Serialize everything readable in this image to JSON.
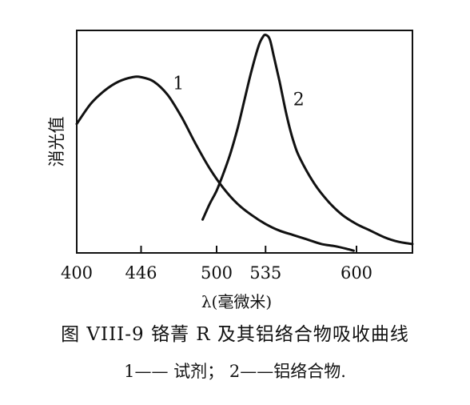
{
  "chart_data": {
    "type": "line",
    "xlabel": "λ(毫微米)",
    "ylabel": "消光值",
    "xlim": [
      400,
      640
    ],
    "ylim": [
      0,
      1.0
    ],
    "x_ticks": [
      400,
      446,
      500,
      535,
      600
    ],
    "tick_labels": [
      "400",
      "446",
      "500",
      "535",
      "600"
    ],
    "grid": false,
    "legend": "none",
    "series": [
      {
        "name": "1",
        "x": [
          400,
          410,
          420,
          430,
          440,
          446,
          455,
          465,
          475,
          485,
          495,
          505,
          515,
          525,
          535,
          545,
          555,
          565,
          575,
          585,
          595,
          598
        ],
        "y": [
          0.58,
          0.67,
          0.73,
          0.77,
          0.79,
          0.79,
          0.77,
          0.71,
          0.61,
          0.49,
          0.38,
          0.29,
          0.22,
          0.17,
          0.13,
          0.1,
          0.08,
          0.06,
          0.04,
          0.03,
          0.015,
          0.01
        ]
      },
      {
        "name": "2",
        "x": [
          490,
          495,
          500,
          505,
          510,
          515,
          520,
          525,
          530,
          533,
          535,
          538,
          541,
          545,
          550,
          555,
          560,
          570,
          580,
          590,
          600,
          610,
          620,
          630,
          640
        ],
        "y": [
          0.15,
          0.22,
          0.28,
          0.36,
          0.45,
          0.56,
          0.69,
          0.82,
          0.93,
          0.97,
          0.98,
          0.96,
          0.88,
          0.77,
          0.62,
          0.5,
          0.42,
          0.31,
          0.23,
          0.17,
          0.13,
          0.1,
          0.07,
          0.05,
          0.04
        ]
      }
    ]
  },
  "caption": {
    "title": "图 VIII-9  铬菁 R 及其铝络合物吸收曲线",
    "note": "1—— 试剂； 2——铝络合物."
  }
}
